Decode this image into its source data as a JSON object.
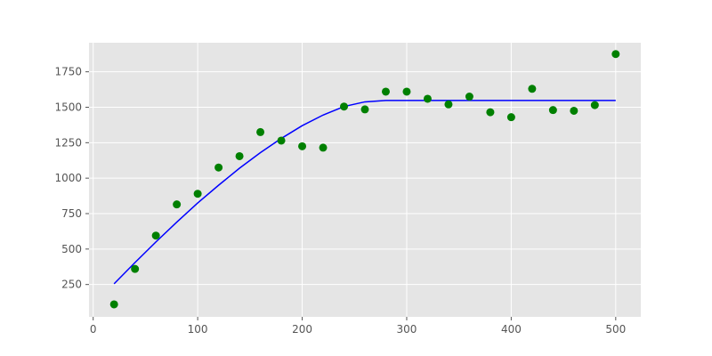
{
  "chart_data": {
    "type": "scatter",
    "title": "",
    "xlabel": "",
    "ylabel": "",
    "xlim": [
      -4,
      524
    ],
    "ylim": [
      22,
      1955
    ],
    "x_ticks": [
      0,
      100,
      200,
      300,
      400,
      500
    ],
    "y_ticks": [
      250,
      500,
      750,
      1000,
      1250,
      1500,
      1750
    ],
    "grid": true,
    "background": "#e5e5e5",
    "series": [
      {
        "type": "scatter",
        "color": "#008000",
        "marker": "circle",
        "points": [
          {
            "x": 20,
            "y": 110
          },
          {
            "x": 40,
            "y": 360
          },
          {
            "x": 60,
            "y": 595
          },
          {
            "x": 80,
            "y": 815
          },
          {
            "x": 100,
            "y": 890
          },
          {
            "x": 120,
            "y": 1075
          },
          {
            "x": 140,
            "y": 1155
          },
          {
            "x": 160,
            "y": 1325
          },
          {
            "x": 180,
            "y": 1265
          },
          {
            "x": 200,
            "y": 1225
          },
          {
            "x": 220,
            "y": 1215
          },
          {
            "x": 240,
            "y": 1505
          },
          {
            "x": 260,
            "y": 1485
          },
          {
            "x": 280,
            "y": 1610
          },
          {
            "x": 300,
            "y": 1610
          },
          {
            "x": 320,
            "y": 1560
          },
          {
            "x": 340,
            "y": 1520
          },
          {
            "x": 360,
            "y": 1575
          },
          {
            "x": 380,
            "y": 1465
          },
          {
            "x": 400,
            "y": 1430
          },
          {
            "x": 420,
            "y": 1630
          },
          {
            "x": 440,
            "y": 1480
          },
          {
            "x": 460,
            "y": 1475
          },
          {
            "x": 480,
            "y": 1515
          },
          {
            "x": 500,
            "y": 1875
          }
        ]
      },
      {
        "type": "line",
        "color": "#0000ff",
        "points": [
          {
            "x": 20,
            "y": 255
          },
          {
            "x": 40,
            "y": 405
          },
          {
            "x": 60,
            "y": 550
          },
          {
            "x": 80,
            "y": 690
          },
          {
            "x": 100,
            "y": 825
          },
          {
            "x": 120,
            "y": 950
          },
          {
            "x": 140,
            "y": 1070
          },
          {
            "x": 160,
            "y": 1180
          },
          {
            "x": 180,
            "y": 1280
          },
          {
            "x": 200,
            "y": 1370
          },
          {
            "x": 220,
            "y": 1445
          },
          {
            "x": 240,
            "y": 1505
          },
          {
            "x": 260,
            "y": 1538
          },
          {
            "x": 280,
            "y": 1548
          },
          {
            "x": 300,
            "y": 1548
          },
          {
            "x": 350,
            "y": 1548
          },
          {
            "x": 400,
            "y": 1548
          },
          {
            "x": 450,
            "y": 1548
          },
          {
            "x": 500,
            "y": 1548
          }
        ]
      }
    ]
  }
}
